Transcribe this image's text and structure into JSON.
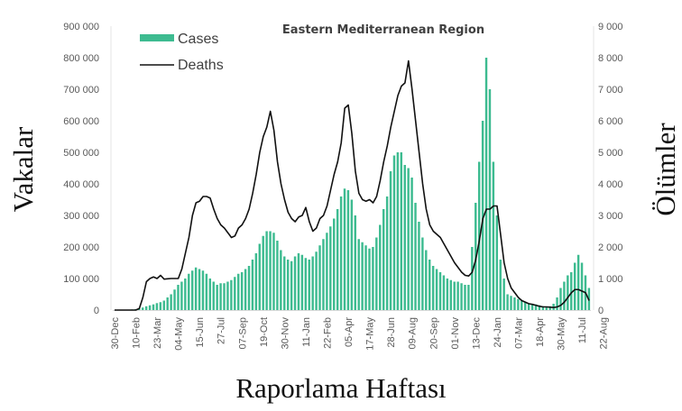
{
  "chart_data": {
    "type": "bar+line",
    "title": "Eastern Mediterranean Region",
    "xlabel": "Raporlama Haftası",
    "ylabel": "Vakalar",
    "y2label": "Ölümler",
    "ylim": [
      0,
      900000
    ],
    "y2lim": [
      0,
      9000
    ],
    "yticks": [
      "0",
      "100 000",
      "200 000",
      "300 000",
      "400 000",
      "500 000",
      "600 000",
      "700 000",
      "800 000",
      "900 000"
    ],
    "y2ticks": [
      "0",
      "1 000",
      "2 000",
      "3 000",
      "4 000",
      "5 000",
      "6 000",
      "7 000",
      "8 000",
      "9 000"
    ],
    "xtick_labels": [
      "30-Dec",
      "10-Feb",
      "23-Mar",
      "04-May",
      "15-Jun",
      "27-Jul",
      "07-Sep",
      "19-Oct",
      "30-Nov",
      "11-Jan",
      "22-Feb",
      "05-Apr",
      "17-May",
      "28-Jun",
      "09-Aug",
      "20-Sep",
      "01-Nov",
      "13-Dec",
      "24-Jan",
      "07-Mar",
      "18-Apr",
      "30-May",
      "11-Jul",
      "22-Aug"
    ],
    "xtick_every_weeks": 6,
    "legend": {
      "position": "top-left",
      "entries": [
        "Cases",
        "Deaths"
      ]
    },
    "colors": {
      "cases": "#3dbb90",
      "deaths": "#111111"
    },
    "series": [
      {
        "name": "Cases",
        "axis": "left",
        "type": "bar",
        "unit": "thousands",
        "values": [
          0,
          0,
          0,
          0,
          1,
          2,
          3,
          5,
          8,
          12,
          15,
          18,
          22,
          25,
          30,
          40,
          50,
          65,
          80,
          90,
          100,
          115,
          125,
          135,
          130,
          125,
          115,
          100,
          90,
          80,
          85,
          85,
          90,
          95,
          105,
          115,
          120,
          130,
          140,
          160,
          180,
          210,
          235,
          250,
          250,
          245,
          220,
          190,
          170,
          160,
          155,
          170,
          180,
          175,
          165,
          160,
          170,
          185,
          205,
          225,
          245,
          265,
          290,
          320,
          360,
          385,
          380,
          350,
          300,
          225,
          215,
          205,
          195,
          200,
          230,
          270,
          320,
          360,
          440,
          490,
          500,
          500,
          460,
          450,
          420,
          340,
          280,
          230,
          190,
          160,
          140,
          130,
          120,
          110,
          100,
          95,
          90,
          90,
          85,
          80,
          80,
          200,
          340,
          470,
          600,
          800,
          700,
          470,
          300,
          160,
          100,
          50,
          45,
          40,
          35,
          30,
          25,
          22,
          20,
          18,
          15,
          12,
          10,
          12,
          20,
          40,
          70,
          90,
          110,
          120,
          150,
          175,
          150,
          110,
          70
        ]
      },
      {
        "name": "Deaths",
        "axis": "right",
        "type": "line",
        "values": [
          0,
          0,
          0,
          0,
          0,
          0,
          0,
          50,
          400,
          900,
          1000,
          1050,
          1000,
          1100,
          980,
          990,
          1000,
          1000,
          1000,
          1300,
          1800,
          2300,
          3000,
          3400,
          3450,
          3600,
          3600,
          3550,
          3200,
          2900,
          2700,
          2600,
          2450,
          2300,
          2350,
          2600,
          2700,
          2900,
          3200,
          3700,
          4300,
          5000,
          5500,
          5800,
          6300,
          5700,
          4700,
          4000,
          3500,
          3100,
          2900,
          2800,
          2950,
          3000,
          3250,
          2800,
          2500,
          2600,
          2900,
          3000,
          3300,
          3800,
          4300,
          4700,
          5300,
          6400,
          6500,
          5600,
          4400,
          3700,
          3500,
          3450,
          3500,
          3400,
          3600,
          4100,
          4700,
          5200,
          5800,
          6300,
          6800,
          7100,
          7200,
          7900,
          7000,
          6000,
          5000,
          4000,
          3200,
          2700,
          2500,
          2400,
          2300,
          2100,
          1900,
          1700,
          1500,
          1350,
          1200,
          1100,
          1080,
          1200,
          1600,
          2200,
          2900,
          3200,
          3200,
          3300,
          3300,
          2400,
          1500,
          1000,
          700,
          550,
          400,
          300,
          250,
          200,
          180,
          150,
          120,
          100,
          100,
          90,
          80,
          100,
          150,
          250,
          400,
          550,
          650,
          650,
          600,
          550,
          300
        ]
      }
    ]
  }
}
